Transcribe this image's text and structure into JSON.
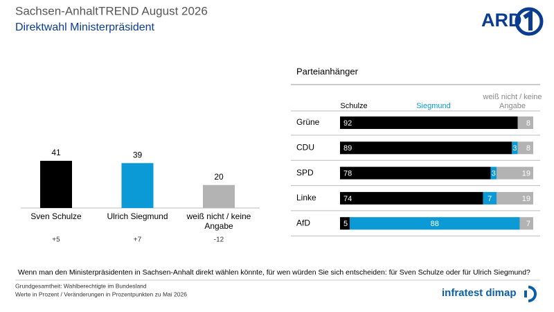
{
  "header": {
    "title": "Sachsen-AnhaltTREND August 2026",
    "subtitle": "Direktwahl Ministerpräsident"
  },
  "chart_data": [
    {
      "type": "bar",
      "categories": [
        "Sven Schulze",
        "Ulrich Siegmund",
        "weiß nicht / keine Angabe"
      ],
      "values": [
        41,
        39,
        20
      ],
      "colors": [
        "#000000",
        "#0b9ad6",
        "#b3b3b3"
      ],
      "changes": [
        "+5",
        "+7",
        "-12"
      ]
    },
    {
      "type": "stacked-bar-horizontal",
      "title": "Parteianhänger",
      "categories": [
        "Grüne",
        "CDU",
        "SPD",
        "Linke",
        "AfD"
      ],
      "series": [
        {
          "name": "Schulze",
          "color": "#000000",
          "values": [
            92,
            89,
            78,
            74,
            5
          ]
        },
        {
          "name": "Siegmund",
          "color": "#0b9ad6",
          "values": [
            null,
            3,
            3,
            7,
            88
          ]
        },
        {
          "name": "weiß nicht / keine Angabe",
          "color": "#b3b3b3",
          "values": [
            8,
            8,
            19,
            19,
            7
          ]
        }
      ]
    }
  ],
  "footer": {
    "question": "Wenn man den Ministerpräsidenten in Sachsen-Anhalt direkt wählen könnte, für wen würden Sie sich entscheiden: für Sven Schulze oder für Ulrich Siegmund?",
    "notes": [
      "Grundgesamtheit: Wahlberechtigte im Bundesland",
      "Werte in Prozent / Veränderungen in Prozentpunkten zu Mai 2026"
    ]
  },
  "logos": {
    "ard": "ARD",
    "infratest": "infratest dimap"
  }
}
